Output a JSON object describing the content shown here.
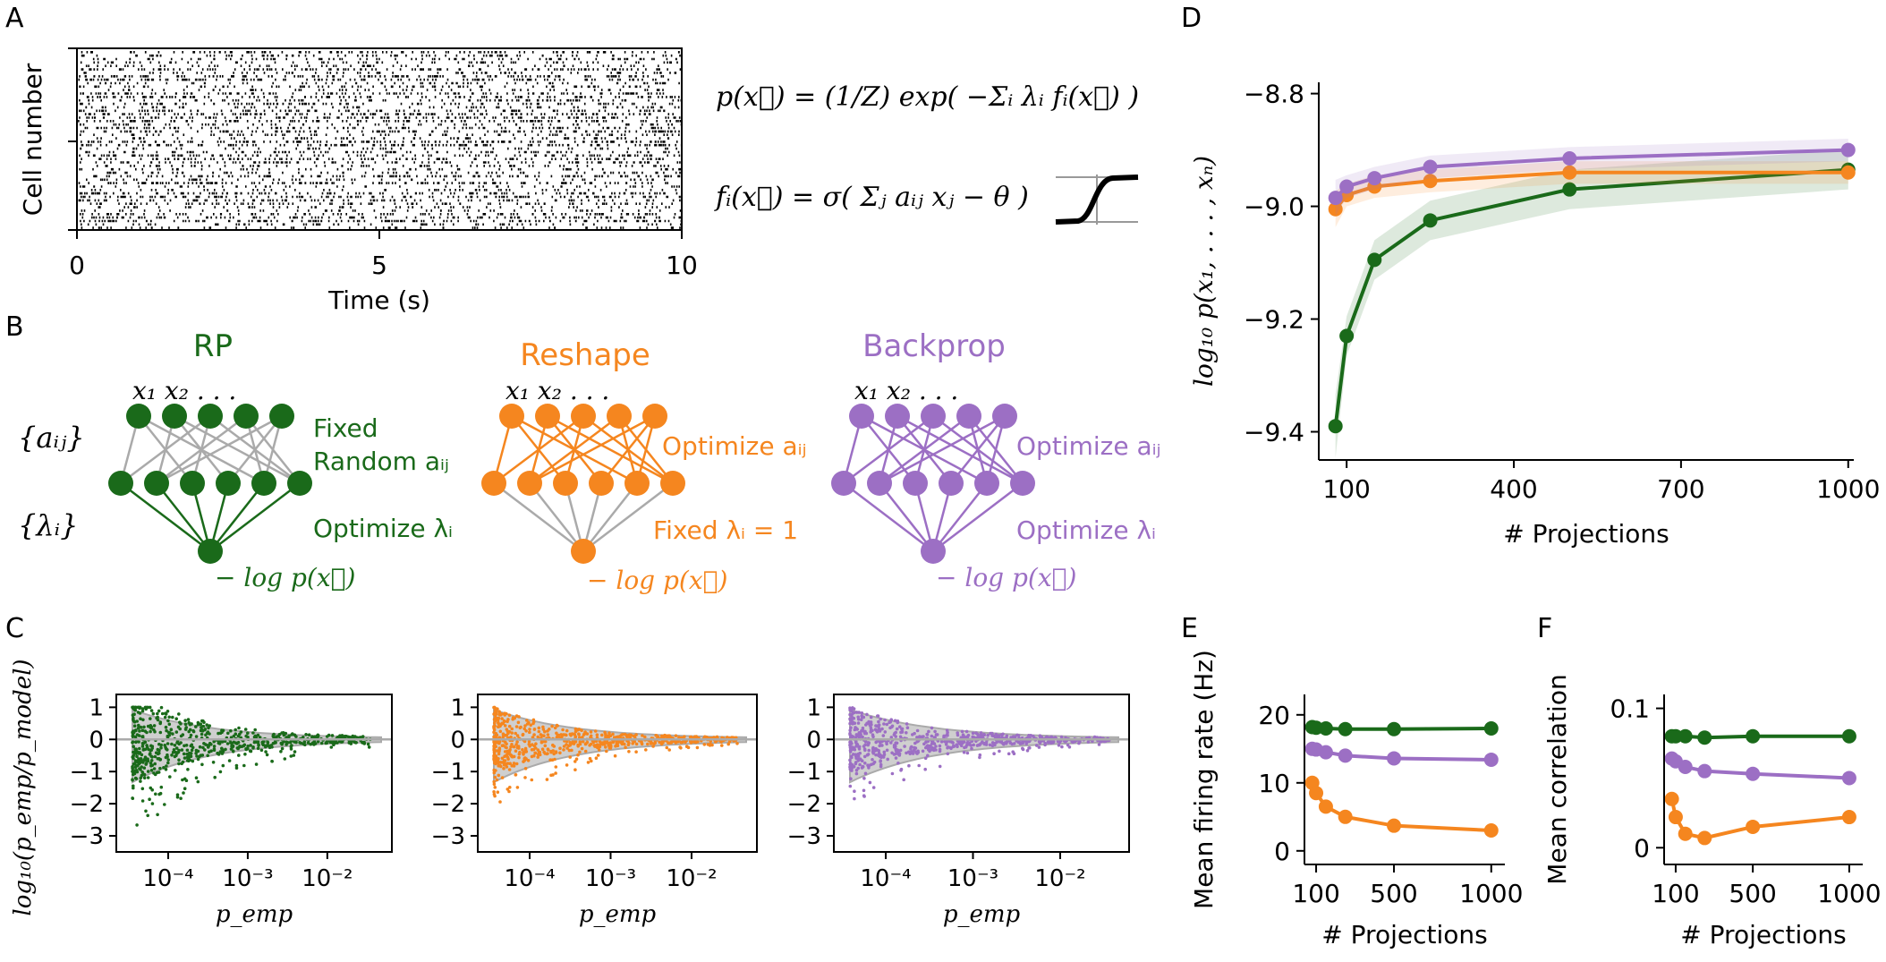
{
  "colors": {
    "rp": "#1a6a1a",
    "reshape": "#f5861f",
    "backprop": "#9c6fc4",
    "gray": "#aaaaaa"
  },
  "panels": {
    "A": "A",
    "B": "B",
    "C": "C",
    "D": "D",
    "E": "E",
    "F": "F"
  },
  "panelA": {
    "ylabel": "Cell number",
    "xlabel": "Time (s)",
    "xticks": [
      "0",
      "5",
      "10"
    ],
    "eq1": "p(x⃗) = (1/Z) exp( −Σᵢ λᵢ fᵢ(x⃗) )",
    "eq2": "fᵢ(x⃗) = σ( Σⱼ aᵢⱼ xⱼ − θ )"
  },
  "panelB": {
    "titles": [
      "RP",
      "Reshape",
      "Backprop"
    ],
    "inputs_label": "x₁ x₂ . . .",
    "row_a": "{aᵢⱼ}",
    "row_l": "{λᵢ}",
    "output_label": "− log p(x⃗)",
    "rp_top": "Fixed",
    "rp_top2": "Random aᵢⱼ",
    "rp_bottom": "Optimize λᵢ",
    "reshape_top": "Optimize aᵢⱼ",
    "reshape_bottom": "Fixed  λᵢ = 1",
    "backprop_top": "Optimize aᵢⱼ",
    "backprop_bottom": "Optimize λᵢ"
  },
  "panelC": {
    "ylabel": "log₁₀(p_emp/p_model)",
    "xlabel": "p_emp",
    "xticks": [
      "10⁻⁴",
      "10⁻³",
      "10⁻²"
    ],
    "yticks": [
      "1",
      "0",
      "−1",
      "−2",
      "−3"
    ]
  },
  "chart_data": [
    {
      "panel": "D",
      "type": "line",
      "xlabel": "# Projections",
      "ylabel": "log₁₀ p(x₁, . . . , xₙ)",
      "xticks": [
        "100",
        "400",
        "700",
        "1000"
      ],
      "yticks": [
        "−8.8",
        "−9.0",
        "−9.2",
        "−9.4"
      ],
      "xlim": [
        50,
        1010
      ],
      "ylim": [
        -9.45,
        -8.78
      ],
      "x": [
        80,
        100,
        150,
        250,
        500,
        1000
      ],
      "series": [
        {
          "name": "RP",
          "values": [
            -9.39,
            -9.23,
            -9.095,
            -9.025,
            -8.97,
            -8.935
          ]
        },
        {
          "name": "Reshape",
          "values": [
            -9.005,
            -8.98,
            -8.965,
            -8.955,
            -8.94,
            -8.94
          ]
        },
        {
          "name": "Backprop",
          "values": [
            -8.985,
            -8.965,
            -8.95,
            -8.93,
            -8.915,
            -8.9
          ]
        }
      ]
    },
    {
      "panel": "E",
      "type": "line",
      "xlabel": "# Projections",
      "ylabel": "Mean firing rate (Hz)",
      "xticks": [
        "100",
        "500",
        "1000"
      ],
      "yticks": [
        "0",
        "10",
        "20"
      ],
      "xlim": [
        40,
        1070
      ],
      "ylim": [
        -2,
        23
      ],
      "x": [
        80,
        100,
        150,
        250,
        500,
        1000
      ],
      "series": [
        {
          "name": "RP",
          "values": [
            18.2,
            18.1,
            18.0,
            17.9,
            17.9,
            18.0
          ]
        },
        {
          "name": "Reshape",
          "values": [
            10.0,
            8.5,
            6.5,
            5.0,
            3.7,
            3.0
          ]
        },
        {
          "name": "Backprop",
          "values": [
            15.0,
            14.9,
            14.5,
            14.0,
            13.6,
            13.4
          ]
        }
      ]
    },
    {
      "panel": "F",
      "type": "line",
      "xlabel": "# Projections",
      "ylabel": "Mean correlation",
      "xticks": [
        "100",
        "500",
        "1000"
      ],
      "yticks": [
        "0",
        "0.1"
      ],
      "xlim": [
        40,
        1070
      ],
      "ylim": [
        -0.012,
        0.11
      ],
      "x": [
        80,
        100,
        150,
        250,
        500,
        1000
      ],
      "series": [
        {
          "name": "RP",
          "values": [
            0.08,
            0.08,
            0.08,
            0.079,
            0.08,
            0.08
          ]
        },
        {
          "name": "Reshape",
          "values": [
            0.035,
            0.022,
            0.01,
            0.007,
            0.015,
            0.022
          ]
        },
        {
          "name": "Backprop",
          "values": [
            0.064,
            0.062,
            0.058,
            0.055,
            0.053,
            0.05
          ]
        }
      ]
    }
  ]
}
